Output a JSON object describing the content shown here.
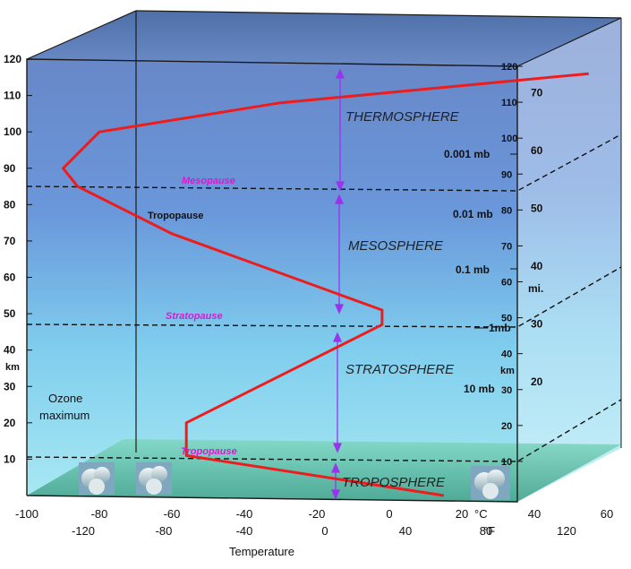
{
  "left_axis": {
    "unit": "km",
    "ticks": [
      "120",
      "110",
      "100",
      "90",
      "80",
      "70",
      "60",
      "50",
      "40",
      "30",
      "20",
      "10"
    ]
  },
  "right_axis": {
    "km_unit": "km",
    "km_ticks": [
      "120",
      "110",
      "100",
      "90",
      "80",
      "70",
      "60",
      "50",
      "40",
      "30",
      "20",
      "10"
    ],
    "mi_unit": "mi.",
    "mi_ticks": [
      "70",
      "60",
      "50",
      "40",
      "30",
      "20"
    ]
  },
  "bottom_axis": {
    "celsius_ticks": [
      "-100",
      "-80",
      "-60",
      "-40",
      "-20",
      "0",
      "20",
      "40",
      "60"
    ],
    "celsius_unit": "°C",
    "fahrenheit_ticks": [
      "-120",
      "-80",
      "-40",
      "0",
      "40",
      "80",
      "120"
    ],
    "fahrenheit_unit": "°F",
    "title": "Temperature"
  },
  "layers": {
    "thermosphere": "THERMOSPHERE",
    "mesosphere": "MESOSPHERE",
    "stratosphere": "STRATOSPHERE",
    "troposphere": "TROPOSPHERE"
  },
  "pauses": {
    "mesopause": "Mesopause",
    "stratopause": "Stratopause",
    "tropopause": "Tropopause",
    "tropopause_upper": "Tropopause"
  },
  "pressures": {
    "p0001": "0.001 mb",
    "p001": "0.01 mb",
    "p01": "0.1 mb",
    "p1": "1mb",
    "p10": "10 mb"
  },
  "ozone": {
    "line1": "Ozone",
    "line2": "maximum"
  },
  "colors": {
    "profile": "#ee1c1c",
    "arrow": "#9933ee",
    "pause_label": "#d81bd0",
    "sky_top": "#5d7fc4",
    "sky_bottom": "#9fe6f2"
  },
  "chart_data": {
    "type": "line",
    "xlabel": "Temperature",
    "x_unit": "°C",
    "y_unit": "km",
    "ylim": [
      0,
      120
    ],
    "xlim": [
      -100,
      70
    ],
    "series": [
      {
        "x": [
          15,
          -56,
          -56,
          -56,
          -2,
          -2,
          -60,
          -86,
          -90,
          -80,
          -30,
          55
        ],
        "y": [
          0,
          11,
          20,
          20,
          47,
          51,
          72,
          85,
          90,
          100,
          108,
          116
        ]
      }
    ],
    "layer_boundaries_km": [
      11,
      47,
      85
    ]
  }
}
